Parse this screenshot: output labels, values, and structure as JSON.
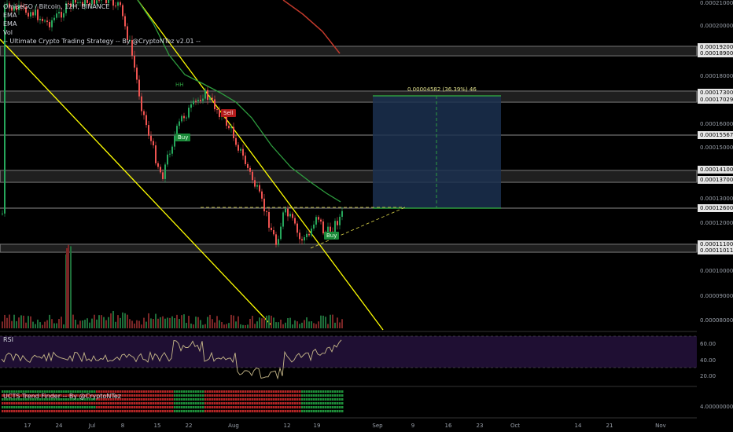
{
  "legend": {
    "symbol": "OmiseGO / Bitcoin, 12H, BINANCE",
    "ema1": "EMA",
    "ema2": "EMA",
    "vol": "Vol",
    "strategy": "-- Ultimate Crypto Trading Strategy -- By @CryptoNTez v2.01 --"
  },
  "price_axis": [
    {
      "label": "0.00021000",
      "style": "plain"
    },
    {
      "label": "0.00020000",
      "style": "plain"
    },
    {
      "label": "0.00019200",
      "style": "boxed"
    },
    {
      "label": "0.00018900",
      "style": "boxed"
    },
    {
      "label": "0.00018000",
      "style": "plain"
    },
    {
      "label": "0.00017300",
      "style": "boxed"
    },
    {
      "label": "0.00017029",
      "style": "boxed"
    },
    {
      "label": "0.00016000",
      "style": "plain"
    },
    {
      "label": "0.00015567",
      "style": "boxed"
    },
    {
      "label": "0.00015000",
      "style": "plain"
    },
    {
      "label": "0.00014100",
      "style": "boxed"
    },
    {
      "label": "0.00013700",
      "style": "boxed"
    },
    {
      "label": "0.00013000",
      "style": "plain"
    },
    {
      "label": "0.00012600",
      "style": "boxed"
    },
    {
      "label": "0.00012000",
      "style": "plain"
    },
    {
      "label": "0.00011100",
      "style": "boxed"
    },
    {
      "label": "0.00011011",
      "style": "boxed"
    },
    {
      "label": "0.00010000",
      "style": "plain"
    },
    {
      "label": "0.00009000",
      "style": "plain"
    },
    {
      "label": "0.00008000",
      "style": "plain"
    }
  ],
  "rsi": {
    "label": "RSI",
    "ticks": [
      "60.00",
      "40.00",
      "20.00"
    ]
  },
  "trend_finder": {
    "label": "UCTS Trend Finder -- By @CryptoNTez",
    "tick": "4.00000000"
  },
  "time_axis": [
    "17",
    "24",
    "Jul",
    "8",
    "15",
    "22",
    "Aug",
    "12",
    "19",
    "Sep",
    "9",
    "16",
    "23",
    "Oct",
    "14",
    "21",
    "Nov"
  ],
  "signals": {
    "buy1": "Buy",
    "sell1": "Sell",
    "buy2": "Buy",
    "hh": "HH"
  },
  "measure": {
    "text": "0.00004582 (36.39%) 46"
  },
  "colors": {
    "background": "#000000",
    "sma": "#c0392b",
    "ema": "#2e9d3f",
    "channel": "#ffff00",
    "up": "#26a65b",
    "down": "#ef5350",
    "rsi_line": "#c8b98a",
    "rsi_band": "#1f0f33",
    "measure": "#1b3050",
    "level_band": "#7a7a7a"
  }
}
